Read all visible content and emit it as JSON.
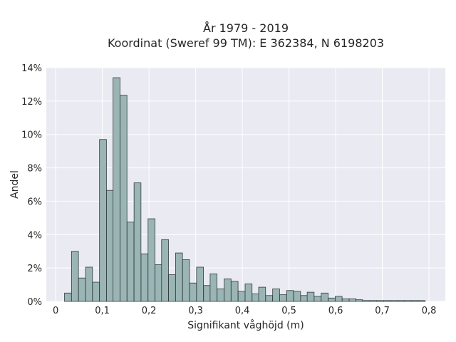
{
  "chart_data": {
    "type": "bar",
    "title_line1": "År 1979 - 2019",
    "title_line2": "Koordinat (Sweref 99 TM): E 362384, N 6198203",
    "xlabel": "Signifikant våghöjd (m)",
    "ylabel": "Andel",
    "xlim": [
      -0.02,
      0.835
    ],
    "ylim": [
      0,
      14
    ],
    "bin_width": 0.01484,
    "x_ticks": [
      {
        "value": 0,
        "label": "0"
      },
      {
        "value": 0.1,
        "label": "0,1"
      },
      {
        "value": 0.2,
        "label": "0,2"
      },
      {
        "value": 0.3,
        "label": "0,3"
      },
      {
        "value": 0.4,
        "label": "0,4"
      },
      {
        "value": 0.5,
        "label": "0,5"
      },
      {
        "value": 0.6,
        "label": "0,6"
      },
      {
        "value": 0.7,
        "label": "0,7"
      },
      {
        "value": 0.8,
        "label": "0,8"
      }
    ],
    "y_ticks": [
      {
        "value": 0,
        "label": "0%"
      },
      {
        "value": 2,
        "label": "2%"
      },
      {
        "value": 4,
        "label": "4%"
      },
      {
        "value": 6,
        "label": "6%"
      },
      {
        "value": 8,
        "label": "8%"
      },
      {
        "value": 10,
        "label": "10%"
      },
      {
        "value": 12,
        "label": "12%"
      },
      {
        "value": 14,
        "label": "14%"
      }
    ],
    "bin_starts": [
      0.019,
      0.034,
      0.049,
      0.064,
      0.079,
      0.094,
      0.109,
      0.123,
      0.138,
      0.153,
      0.168,
      0.183,
      0.198,
      0.213,
      0.227,
      0.242,
      0.257,
      0.272,
      0.287,
      0.302,
      0.317,
      0.331,
      0.346,
      0.361,
      0.376,
      0.391,
      0.406,
      0.421,
      0.435,
      0.45,
      0.465,
      0.48,
      0.495,
      0.51,
      0.525,
      0.539,
      0.554,
      0.569,
      0.584,
      0.599,
      0.614,
      0.629,
      0.643,
      0.658,
      0.673,
      0.688,
      0.703,
      0.718,
      0.733,
      0.747,
      0.762,
      0.777
    ],
    "values": [
      0.5,
      3.0,
      1.4,
      2.05,
      1.15,
      9.7,
      6.65,
      13.4,
      12.35,
      4.75,
      7.1,
      2.85,
      4.95,
      2.2,
      3.7,
      1.6,
      2.9,
      2.5,
      1.1,
      2.05,
      0.95,
      1.65,
      0.75,
      1.35,
      1.2,
      0.6,
      1.05,
      0.45,
      0.85,
      0.35,
      0.75,
      0.4,
      0.65,
      0.6,
      0.35,
      0.55,
      0.3,
      0.5,
      0.2,
      0.3,
      0.15,
      0.15,
      0.1,
      0.05,
      0.05,
      0.05,
      0.05,
      0.05,
      0.05,
      0.05,
      0.05,
      0.05
    ],
    "grid": true,
    "colors": {
      "background": "#eaeaf2",
      "grid": "#ffffff",
      "bar_fill": "#9bb5b5",
      "bar_edge": "#2f3b3b",
      "text": "#262626"
    }
  }
}
